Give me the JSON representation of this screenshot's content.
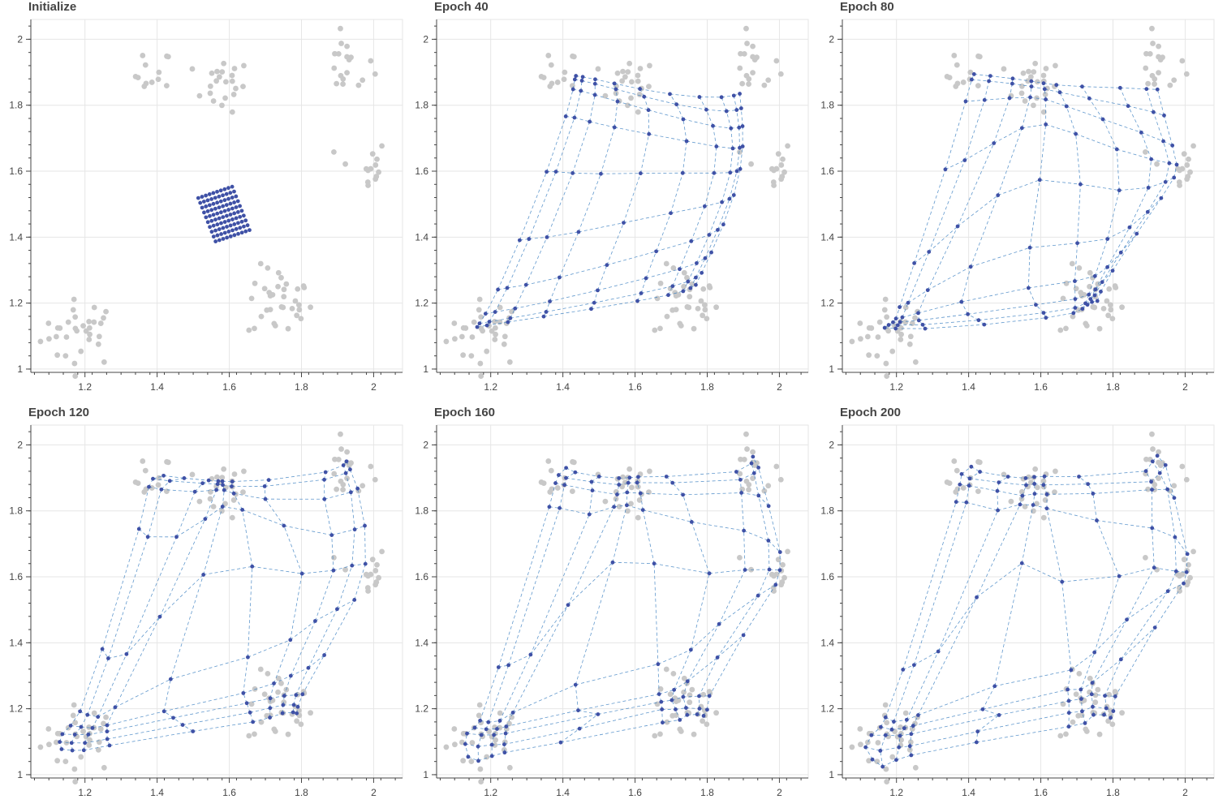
{
  "chart_data": [
    {
      "type": "scatter",
      "title": "Initialize",
      "xlim": [
        1.05,
        2.08
      ],
      "ylim": [
        0.99,
        2.06
      ],
      "x_ticks": [
        "1.2",
        "1.4",
        "1.6",
        "1.8",
        "2"
      ],
      "y_ticks": [
        "1",
        "1.2",
        "1.4",
        "1.6",
        "1.8",
        "2"
      ],
      "grid": true,
      "legend": "none",
      "series": [
        {
          "kind": "data-points"
        },
        {
          "kind": "som-nodes"
        }
      ]
    },
    {
      "type": "scatter",
      "title": "Epoch 40",
      "xlim": [
        1.05,
        2.08
      ],
      "ylim": [
        0.99,
        2.06
      ],
      "x_ticks": [
        "1.2",
        "1.4",
        "1.6",
        "1.8",
        "2"
      ],
      "y_ticks": [
        "1",
        "1.2",
        "1.4",
        "1.6",
        "1.8",
        "2"
      ],
      "grid": true,
      "legend": "none",
      "series": [
        {
          "kind": "data-points"
        },
        {
          "kind": "som-nodes"
        },
        {
          "kind": "som-edges"
        }
      ]
    },
    {
      "type": "scatter",
      "title": "Epoch 80",
      "xlim": [
        1.05,
        2.08
      ],
      "ylim": [
        0.99,
        2.06
      ],
      "x_ticks": [
        "1.2",
        "1.4",
        "1.6",
        "1.8",
        "2"
      ],
      "y_ticks": [
        "1",
        "1.2",
        "1.4",
        "1.6",
        "1.8",
        "2"
      ],
      "grid": true,
      "legend": "none",
      "series": [
        {
          "kind": "data-points"
        },
        {
          "kind": "som-nodes"
        },
        {
          "kind": "som-edges"
        }
      ]
    },
    {
      "type": "scatter",
      "title": "Epoch 120",
      "xlim": [
        1.05,
        2.08
      ],
      "ylim": [
        0.99,
        2.06
      ],
      "x_ticks": [
        "1.2",
        "1.4",
        "1.6",
        "1.8",
        "2"
      ],
      "y_ticks": [
        "1",
        "1.2",
        "1.4",
        "1.6",
        "1.8",
        "2"
      ],
      "grid": true,
      "legend": "none",
      "series": [
        {
          "kind": "data-points"
        },
        {
          "kind": "som-nodes"
        },
        {
          "kind": "som-edges"
        }
      ]
    },
    {
      "type": "scatter",
      "title": "Epoch 160",
      "xlim": [
        1.05,
        2.08
      ],
      "ylim": [
        0.99,
        2.06
      ],
      "x_ticks": [
        "1.2",
        "1.4",
        "1.6",
        "1.8",
        "2"
      ],
      "y_ticks": [
        "1",
        "1.2",
        "1.4",
        "1.6",
        "1.8",
        "2"
      ],
      "grid": true,
      "legend": "none",
      "series": [
        {
          "kind": "data-points"
        },
        {
          "kind": "som-nodes"
        },
        {
          "kind": "som-edges"
        }
      ]
    },
    {
      "type": "scatter",
      "title": "Epoch 200",
      "xlim": [
        1.05,
        2.08
      ],
      "ylim": [
        0.99,
        2.06
      ],
      "x_ticks": [
        "1.2",
        "1.4",
        "1.6",
        "1.8",
        "2"
      ],
      "y_ticks": [
        "1",
        "1.2",
        "1.4",
        "1.6",
        "1.8",
        "2"
      ],
      "grid": true,
      "legend": "none",
      "series": [
        {
          "kind": "data-points"
        },
        {
          "kind": "som-nodes"
        },
        {
          "kind": "som-edges"
        }
      ]
    }
  ],
  "clusters": [
    {
      "cx": 1.19,
      "cy": 1.11,
      "sx": 0.055,
      "sy": 0.05,
      "n": 32
    },
    {
      "cx": 1.39,
      "cy": 1.89,
      "sx": 0.025,
      "sy": 0.04,
      "n": 12
    },
    {
      "cx": 1.58,
      "cy": 1.86,
      "sx": 0.04,
      "sy": 0.04,
      "n": 22
    },
    {
      "cx": 1.93,
      "cy": 1.92,
      "sx": 0.035,
      "sy": 0.045,
      "n": 18
    },
    {
      "cx": 1.74,
      "cy": 1.2,
      "sx": 0.045,
      "sy": 0.055,
      "n": 34
    },
    {
      "cx": 1.97,
      "cy": 1.61,
      "sx": 0.035,
      "sy": 0.045,
      "n": 14
    }
  ],
  "colors": {
    "data_point": "#c8c8c8",
    "node": "#3f51a6",
    "edge": "#3a7fc1",
    "grid": "#e6e6e6",
    "axis": "#444444"
  }
}
